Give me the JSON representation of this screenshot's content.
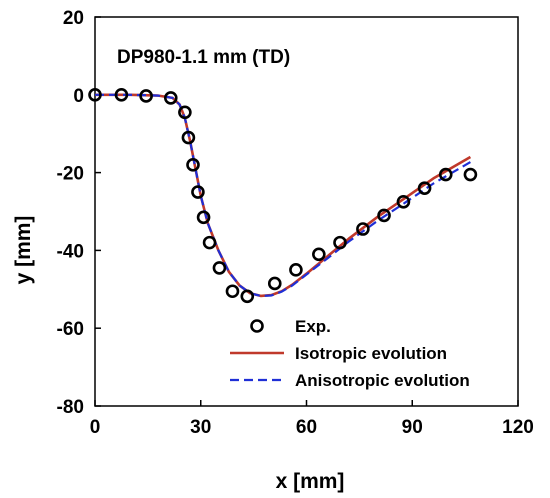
{
  "chart_data": {
    "type": "line",
    "xlabel": "x [mm]",
    "ylabel": "y [mm]",
    "xlim": [
      0,
      120
    ],
    "ylim": [
      -80,
      20
    ],
    "xticks": [
      0,
      30,
      60,
      90,
      120
    ],
    "yticks": [
      20,
      0,
      -20,
      -40,
      -60,
      -80
    ],
    "annotation": "DP980-1.1 mm (TD)",
    "grid": false,
    "legend_position": "bottom-right",
    "series": [
      {
        "name": "Exp.",
        "style": "markers",
        "color": "#000000",
        "x": [
          0,
          7.5,
          14.5,
          21.5,
          25.5,
          26.5,
          27.8,
          29.2,
          30.8,
          32.5,
          35.3,
          39,
          43.2,
          51,
          57,
          63.5,
          69.5,
          76,
          82,
          87.5,
          93.5,
          99.5,
          106.5
        ],
        "y": [
          0,
          0,
          -0.3,
          -0.8,
          -4.5,
          -11,
          -18,
          -25,
          -31.5,
          -38,
          -44.5,
          -50.5,
          -51.8,
          -48.5,
          -45,
          -41,
          -38,
          -34.5,
          -31,
          -27.5,
          -24,
          -20.5,
          -20.5
        ]
      },
      {
        "name": "Isotropic evolution",
        "style": "solid",
        "color": "#c0392b",
        "x": [
          0,
          10,
          18,
          22,
          24,
          25.5,
          27,
          28.5,
          30,
          32,
          35,
          38,
          41,
          44,
          47,
          50,
          53,
          56,
          60,
          66,
          72,
          80,
          88,
          96,
          106.5
        ],
        "y": [
          0,
          0,
          -0.2,
          -0.8,
          -2.5,
          -6,
          -12,
          -19,
          -26,
          -33,
          -40,
          -45.5,
          -49,
          -51,
          -51.7,
          -51.5,
          -50.5,
          -48.8,
          -46,
          -41.5,
          -37,
          -31.5,
          -26.5,
          -21.5,
          -16
        ]
      },
      {
        "name": "Anisotropic evolution",
        "style": "dashed",
        "color": "#1f2fd6",
        "x": [
          0,
          10,
          18,
          22,
          24,
          25.5,
          27,
          28.5,
          30,
          32,
          35,
          38,
          41,
          44,
          47,
          50,
          53,
          56,
          60,
          66,
          72,
          80,
          88,
          96,
          106.5
        ],
        "y": [
          0,
          0,
          -0.2,
          -0.8,
          -2.5,
          -6,
          -12,
          -19,
          -26,
          -33,
          -40,
          -45.5,
          -49,
          -51,
          -51.7,
          -51.6,
          -50.6,
          -49,
          -46.2,
          -42,
          -37.7,
          -32.5,
          -27.7,
          -22.8,
          -17.3
        ]
      }
    ]
  }
}
